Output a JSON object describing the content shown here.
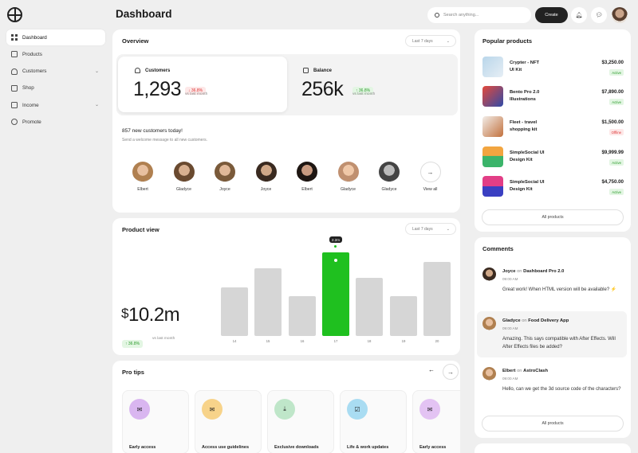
{
  "header": {
    "title": "Dashboard",
    "search_placeholder": "Search anything...",
    "create_label": "Create"
  },
  "sidebar": {
    "items": [
      {
        "label": "Dashboard",
        "icon": "grid-icon"
      },
      {
        "label": "Products",
        "icon": "box-icon"
      },
      {
        "label": "Customers",
        "icon": "user-icon",
        "expandable": true
      },
      {
        "label": "Shop",
        "icon": "shop-icon"
      },
      {
        "label": "Income",
        "icon": "chart-icon",
        "expandable": true
      },
      {
        "label": "Promote",
        "icon": "promote-icon"
      }
    ]
  },
  "overview": {
    "title": "Overview",
    "range": "Last 7 days",
    "customers": {
      "label": "Customers",
      "value": "1,293",
      "change": "36.8%",
      "note": "vs last month"
    },
    "balance": {
      "label": "Balance",
      "value": "256k",
      "change": "36.8%",
      "note": "vs last month"
    },
    "new_customers_title": "857 new customers today!",
    "new_customers_sub": "Send a welcome message to all new customers.",
    "people": [
      "Elbert",
      "Gladyce",
      "Joyce",
      "Joyce",
      "Elbert",
      "Gladyce",
      "Gladyce"
    ],
    "view_all": "View all"
  },
  "product_view": {
    "title": "Product view",
    "range": "Last 7 days",
    "value_symbol": "$",
    "value": "10.2m",
    "change": "36.8%",
    "note": "vs last month",
    "tooltip": "2.2m"
  },
  "chart_data": {
    "type": "bar",
    "categories": [
      "14",
      "15",
      "16",
      "17",
      "18",
      "19",
      "20"
    ],
    "values": [
      0.5,
      0.7,
      0.41,
      0.86,
      0.6,
      0.41,
      0.76
    ],
    "highlight_index": 3,
    "colors": {
      "bar": "#d6d6d6",
      "highlight": "#1fc01f"
    }
  },
  "pro_tips": {
    "title": "Pro tips",
    "items": [
      {
        "label": "Early access",
        "color": "#d9b6f0",
        "icon": "mail-icon"
      },
      {
        "label": "Access use guidelines",
        "color": "#f7d38a",
        "icon": "mail-icon"
      },
      {
        "label": "Exclusive downloads",
        "color": "#bfe6c9",
        "icon": "download-icon"
      },
      {
        "label": "Life & work updates",
        "color": "#a9dcf2",
        "icon": "check-icon"
      },
      {
        "label": "Early access",
        "color": "#e3c3f3",
        "icon": "mail-icon"
      }
    ]
  },
  "popular": {
    "title": "Popular products",
    "items": [
      {
        "name1": "Crypter - NFT",
        "name2": "UI Kit",
        "price": "$3,250.00",
        "status": "Active",
        "active": true
      },
      {
        "name1": "Bento Pro 2.0",
        "name2": "Illustrations",
        "price": "$7,890.00",
        "status": "Active",
        "active": true
      },
      {
        "name1": "Fleet - travel",
        "name2": "shopping kit",
        "price": "$1,500.00",
        "status": "Offline",
        "active": false
      },
      {
        "name1": "SimpleSocial UI",
        "name2": "Design Kit",
        "price": "$9,999.99",
        "status": "Active",
        "active": true
      },
      {
        "name1": "SimpleSocial UI",
        "name2": "Design Kit",
        "price": "$4,750.00",
        "status": "Active",
        "active": true
      }
    ],
    "all_label": "All products"
  },
  "comments": {
    "title": "Comments",
    "on_word": "on",
    "items": [
      {
        "name": "Joyce",
        "target": "Dashboard Pro 2.0",
        "time": "09:00 AM",
        "text": "Great work! When HTML version will be available? ⚡"
      },
      {
        "name": "Gladyce",
        "target": "Food Delivery App",
        "time": "09:00 AM",
        "text": "Amazing. This says compatible with After Effects. Will After Effects files be added?"
      },
      {
        "name": "Elbert",
        "target": "AstroClash",
        "time": "09:00 AM",
        "text": "Hello, can we get the 3d source code of the characters?"
      }
    ],
    "all_label": "All products"
  }
}
